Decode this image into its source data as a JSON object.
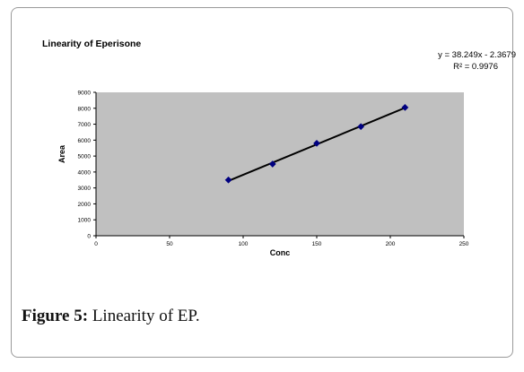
{
  "figure": {
    "label": "Figure 5:",
    "text": "Linearity of EP."
  },
  "chart_data": {
    "type": "scatter",
    "title": "Linearity of Eperisone",
    "xlabel": "Conc",
    "ylabel": "Area",
    "xlim": [
      0,
      250
    ],
    "ylim": [
      0,
      9000
    ],
    "x_ticks": [
      0,
      50,
      100,
      150,
      200,
      250
    ],
    "y_ticks": [
      0,
      1000,
      2000,
      3000,
      4000,
      5000,
      6000,
      7000,
      8000,
      9000
    ],
    "x_tick_labels": [
      "0",
      "50",
      "100",
      "150",
      "200",
      "250"
    ],
    "y_tick_labels": [
      "0",
      "1000",
      "2000",
      "3000",
      "4000",
      "5000",
      "6000",
      "7000",
      "8000",
      "9000"
    ],
    "grid": false,
    "plot_background": "#c0c0c0",
    "series": [
      {
        "x": [
          90,
          120,
          150,
          180,
          210
        ],
        "y": [
          3500,
          4500,
          5800,
          6850,
          8050
        ],
        "color": "#000080"
      }
    ],
    "trendline": {
      "slope": 38.249,
      "intercept": -2.3679,
      "x_range": [
        90,
        210
      ],
      "color": "#000000",
      "equation": "y = 38.249x  - 2.3679",
      "r2": "R² = 0.9976"
    }
  }
}
